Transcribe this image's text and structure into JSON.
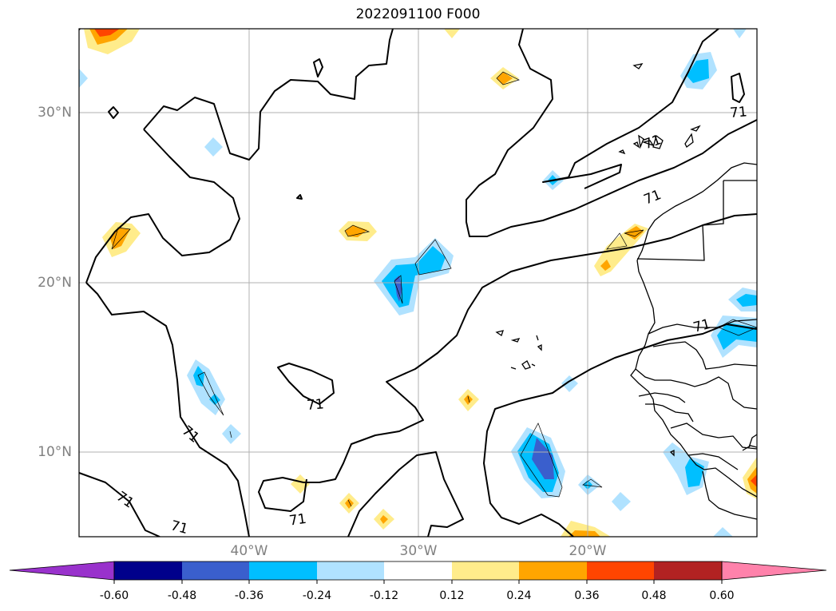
{
  "title": "2022091100 F000",
  "latitude_labels": [
    "30°N",
    "20°N",
    "10°N"
  ],
  "longitude_labels": [
    "40°W",
    "30°W",
    "20°W"
  ],
  "contour_labels": [
    "71",
    "71",
    "71",
    "71",
    "71",
    "71",
    "71",
    "71",
    "71"
  ],
  "colorbar": {
    "tick_labels": [
      "-0.60",
      "-0.48",
      "-0.36",
      "-0.24",
      "-0.12",
      "0.12",
      "0.24",
      "0.36",
      "0.48",
      "0.60"
    ],
    "colors": [
      "#9932cc",
      "#00008b",
      "#3a5fcd",
      "#00bfff",
      "#b0e2ff",
      "#ffffff",
      "#ffec8b",
      "#ffa500",
      "#ff4500",
      "#b22222",
      "#ff82ab"
    ],
    "extend": "both"
  },
  "fill_colors": {
    "light_yellow": "#ffec8b",
    "orange": "#ffa500",
    "red_orange": "#ff4500",
    "light_blue": "#b0e2ff",
    "cyan": "#00bfff",
    "blue": "#3a5fcd"
  }
}
